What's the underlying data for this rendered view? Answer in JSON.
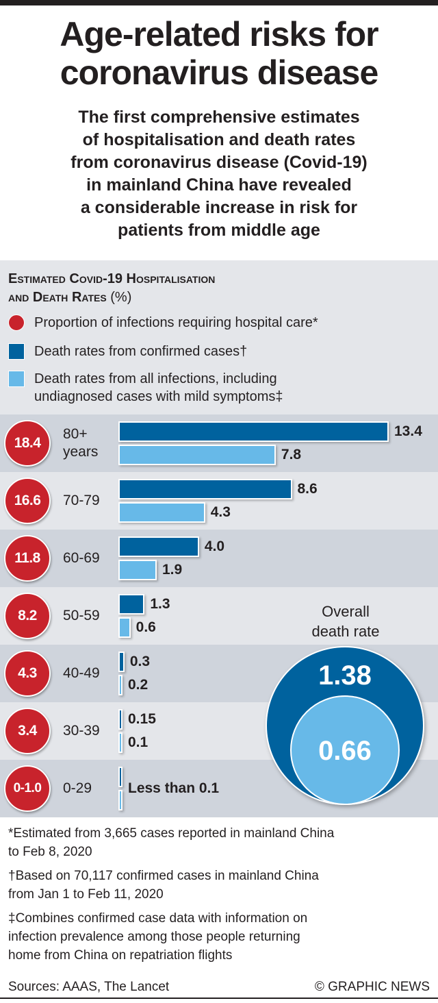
{
  "header": {
    "title_line1": "Age-related risks for",
    "title_line2": "coronavirus disease",
    "subtitle_lines": [
      "The first comprehensive estimates",
      "of hospitalisation and death rates",
      "from coronavirus disease (Covid-19)",
      "in mainland China have revealed",
      "a considerable increase in risk for",
      "patients from middle age"
    ]
  },
  "legend": {
    "title_line1": "Estimated Covid-19 Hospitalisation",
    "title_line2": "and Death Rates",
    "title_unit": "(%)",
    "items": [
      {
        "label": "Proportion of infections requiring hospital care*",
        "color": "#c8232c",
        "shape": "circle"
      },
      {
        "label": "Death rates from confirmed cases†",
        "color": "#00629e",
        "shape": "square"
      },
      {
        "label_line1": "Death rates from all infections, including",
        "label_line2": "undiagnosed cases with mild symptoms‡",
        "color": "#67b9e8",
        "shape": "square"
      }
    ]
  },
  "chart_data": {
    "type": "bar",
    "orientation": "horizontal",
    "title": "Estimated Covid-19 Hospitalisation and Death Rates (%)",
    "categories": [
      "80+ years",
      "70-79",
      "60-69",
      "50-59",
      "40-49",
      "30-39",
      "0-29"
    ],
    "category_labels": [
      [
        "80+",
        "years"
      ],
      [
        "70-79"
      ],
      [
        "60-69"
      ],
      [
        "50-59"
      ],
      [
        "40-49"
      ],
      [
        "30-39"
      ],
      [
        "0-29"
      ]
    ],
    "hospitalisation": {
      "name": "Proportion of infections requiring hospital care*",
      "labels": [
        "18.4",
        "16.6",
        "11.8",
        "8.2",
        "4.3",
        "3.4",
        "0-1.0"
      ]
    },
    "series": [
      {
        "name": "Death rates from confirmed cases†",
        "color": "#00629e",
        "values": [
          13.4,
          8.6,
          4.0,
          1.3,
          0.3,
          0.15,
          0.05
        ],
        "labels": [
          "13.4",
          "8.6",
          "4.0",
          "1.3",
          "0.3",
          "0.15",
          ""
        ]
      },
      {
        "name": "Death rates from all infections, including undiagnosed cases with mild symptoms‡",
        "color": "#67b9e8",
        "values": [
          7.8,
          4.3,
          1.9,
          0.6,
          0.2,
          0.1,
          0.05
        ],
        "labels": [
          "7.8",
          "4.3",
          "1.9",
          "0.6",
          "0.2",
          "0.1",
          ""
        ]
      }
    ],
    "combined_label_last_row": "Less than 0.1",
    "xlim": [
      0,
      13.4
    ],
    "grid": false,
    "legend_position": "top",
    "overall": {
      "label_line1": "Overall",
      "label_line2": "death rate",
      "confirmed": 1.38,
      "confirmed_label": "1.38",
      "all_infections": 0.66,
      "all_infections_label": "0.66"
    }
  },
  "colors": {
    "hospital_red": "#c8232c",
    "confirmed_blue": "#00629e",
    "all_infections_blue": "#67b9e8",
    "band_dark": "#cfd4dc",
    "band_light": "#e4e6ea"
  },
  "notes": [
    {
      "line1": "*Estimated from 3,665 cases reported in mainland China",
      "line2": "to Feb 8, 2020"
    },
    {
      "line1": "†Based on 70,117 confirmed cases in mainland China",
      "line2": "from Jan 1 to Feb 11, 2020"
    },
    {
      "line1": "‡Combines confirmed case data with information on",
      "line2": "infection prevalence among those people returning",
      "line3": "home from China on repatriation flights"
    }
  ],
  "footer": {
    "sources": "Sources: AAAS, The Lancet",
    "credit": "© GRAPHIC NEWS"
  }
}
